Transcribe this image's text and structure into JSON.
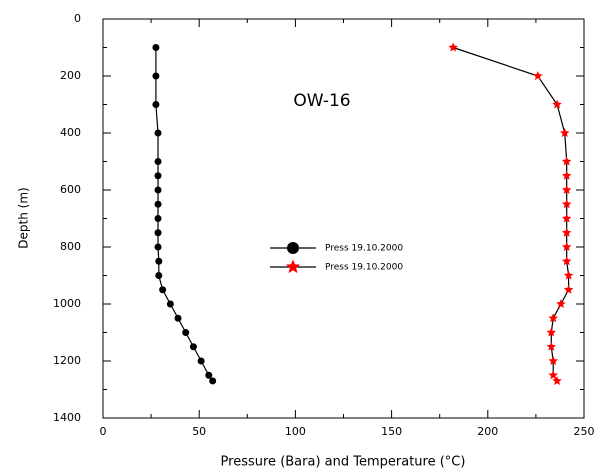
{
  "chart_data": {
    "type": "line",
    "annotation": "OW-16",
    "xlabel": "Pressure (Bara) and Temperature (°C)",
    "ylabel": "Depth (m)",
    "xlim": [
      0,
      250
    ],
    "ylim": [
      1400,
      0
    ],
    "xticks": [
      0,
      50,
      100,
      150,
      200,
      250
    ],
    "xticks_minor": [
      25,
      75,
      125,
      175,
      225
    ],
    "yticks": [
      0,
      200,
      400,
      600,
      800,
      1000,
      1200,
      1400
    ],
    "yticks_minor": [
      100,
      300,
      500,
      700,
      900,
      1100,
      1300
    ],
    "series": [
      {
        "name": "Press 19.10.2000",
        "color": "#000000",
        "marker": "circle",
        "x": [
          27.5,
          27.5,
          27.5,
          28.6,
          28.6,
          28.6,
          28.6,
          28.6,
          28.6,
          28.6,
          28.6,
          29,
          29,
          31,
          35,
          39,
          43,
          47,
          51,
          55,
          57
        ],
        "values": [
          100,
          200,
          300,
          400,
          500,
          550,
          600,
          650,
          700,
          750,
          800,
          850,
          900,
          950,
          1000,
          1050,
          1100,
          1150,
          1200,
          1250,
          1270
        ]
      },
      {
        "name": "Press 19.10.2000",
        "color": "#ff0000",
        "marker": "star",
        "x": [
          182,
          226,
          236,
          240,
          241,
          241,
          241,
          241,
          241,
          241,
          241,
          241,
          242,
          242,
          238,
          234,
          233,
          233,
          234,
          234,
          236
        ],
        "values": [
          100,
          200,
          300,
          400,
          500,
          550,
          600,
          650,
          700,
          750,
          800,
          850,
          900,
          950,
          1000,
          1050,
          1100,
          1150,
          1200,
          1250,
          1270
        ]
      }
    ]
  }
}
